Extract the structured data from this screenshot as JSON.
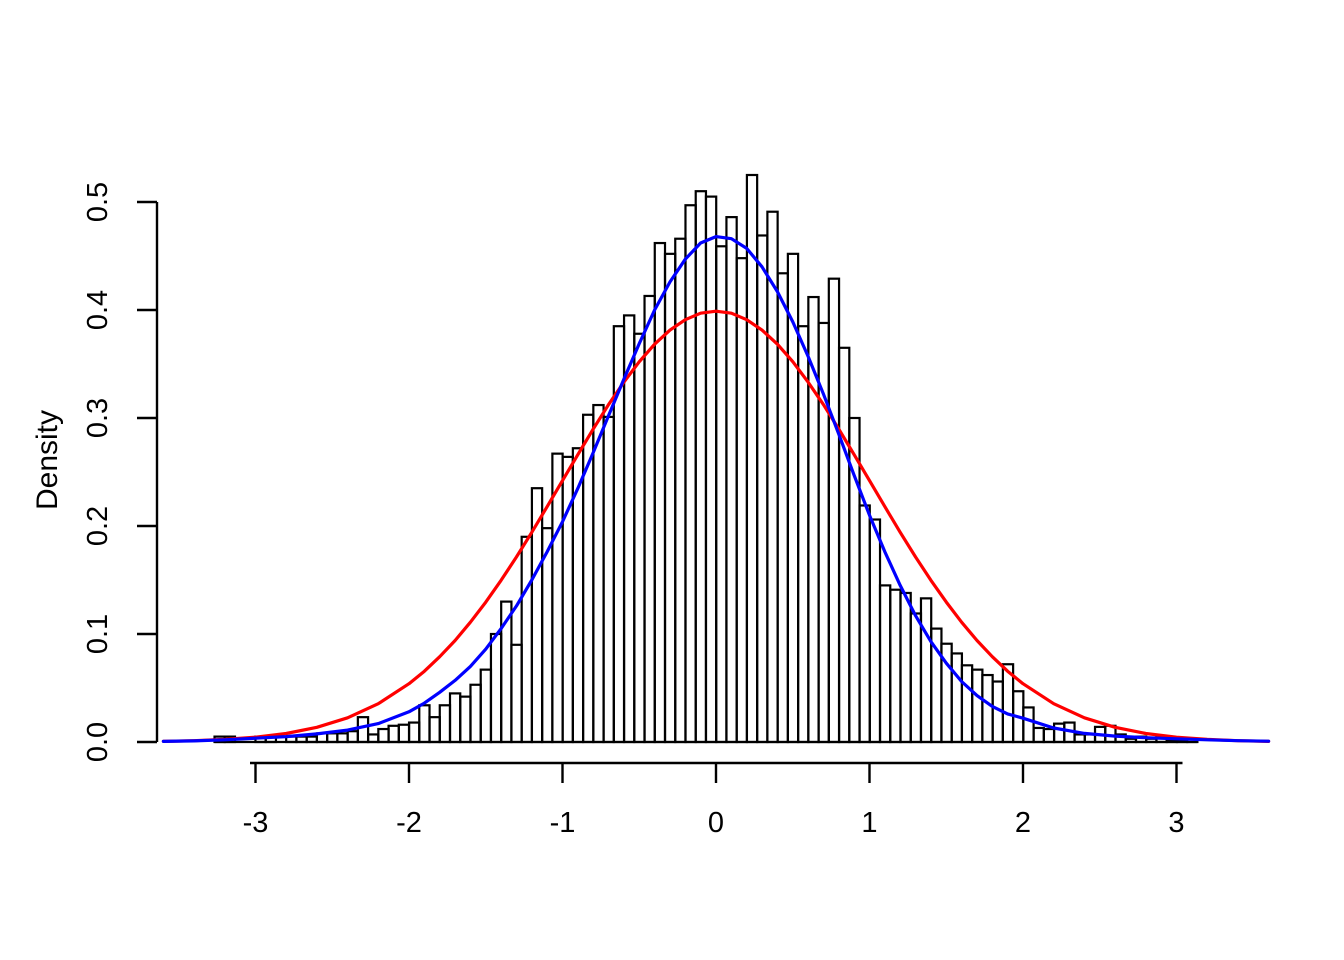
{
  "figure": {
    "background": "#FFFFFF"
  },
  "chart_data": {
    "type": "histogram",
    "title": "",
    "xlabel": "",
    "ylabel": "Density",
    "x_tick_labels": [
      "-3",
      "-2",
      "-1",
      "0",
      "1",
      "2",
      "3"
    ],
    "x_tick_values": [
      -3,
      -2,
      -1,
      0,
      1,
      2,
      3
    ],
    "y_tick_labels": [
      "0.0",
      "0.1",
      "0.2",
      "0.3",
      "0.4",
      "0.5"
    ],
    "y_tick_values": [
      0,
      0.1,
      0.2,
      0.3,
      0.4,
      0.5
    ],
    "xlim": [
      -3.65,
      3.72
    ],
    "ylim": [
      0,
      0.525
    ],
    "grid": "off",
    "legend": "none",
    "histogram": {
      "name": "sample-histogram",
      "bar_fill": "none",
      "bar_stroke": "#000000",
      "bin_start": -3.267,
      "bin_width": 0.0667,
      "densities": [
        0.005,
        0.005,
        0,
        0,
        0.005,
        0.005,
        0,
        0.005,
        0.005,
        0.005,
        0.008,
        0.008,
        0.008,
        0.01,
        0.023,
        0.007,
        0.012,
        0.015,
        0.016,
        0.018,
        0.034,
        0.023,
        0.034,
        0.045,
        0.042,
        0.053,
        0.067,
        0.1,
        0.13,
        0.09,
        0.19,
        0.235,
        0.198,
        0.267,
        0.264,
        0.272,
        0.303,
        0.312,
        0.301,
        0.385,
        0.395,
        0.378,
        0.413,
        0.462,
        0.452,
        0.466,
        0.497,
        0.51,
        0.505,
        0.459,
        0.486,
        0.448,
        0.525,
        0.469,
        0.491,
        0.434,
        0.452,
        0.385,
        0.412,
        0.388,
        0.429,
        0.365,
        0.3,
        0.219,
        0.206,
        0.145,
        0.141,
        0.138,
        0.119,
        0.133,
        0.105,
        0.091,
        0.082,
        0.071,
        0.067,
        0.062,
        0.056,
        0.072,
        0.047,
        0.032,
        0.013,
        0.012,
        0.017,
        0.018,
        0.007,
        0.007,
        0.014,
        0.015,
        0.007,
        0.003,
        0.005,
        0.003,
        0.005,
        0.002,
        0.002,
        0.003
      ]
    },
    "curves": [
      {
        "name": "theoretical-normal-density",
        "color": "#FF0000",
        "line_width": 3.2,
        "points": [
          [
            -3.6,
            0.0006
          ],
          [
            -3.4,
            0.0012
          ],
          [
            -3.2,
            0.0024
          ],
          [
            -3.0,
            0.0044
          ],
          [
            -2.8,
            0.0079
          ],
          [
            -2.6,
            0.0136
          ],
          [
            -2.4,
            0.0224
          ],
          [
            -2.2,
            0.0355
          ],
          [
            -2.0,
            0.054
          ],
          [
            -1.9,
            0.0656
          ],
          [
            -1.8,
            0.079
          ],
          [
            -1.7,
            0.094
          ],
          [
            -1.6,
            0.1109
          ],
          [
            -1.5,
            0.1295
          ],
          [
            -1.4,
            0.1497
          ],
          [
            -1.3,
            0.1714
          ],
          [
            -1.2,
            0.1942
          ],
          [
            -1.1,
            0.2179
          ],
          [
            -1.0,
            0.242
          ],
          [
            -0.9,
            0.2661
          ],
          [
            -0.8,
            0.2897
          ],
          [
            -0.7,
            0.3123
          ],
          [
            -0.6,
            0.3332
          ],
          [
            -0.5,
            0.3521
          ],
          [
            -0.4,
            0.3683
          ],
          [
            -0.3,
            0.3814
          ],
          [
            -0.2,
            0.391
          ],
          [
            -0.1,
            0.397
          ],
          [
            0,
            0.3989
          ],
          [
            0.1,
            0.397
          ],
          [
            0.2,
            0.391
          ],
          [
            0.3,
            0.3814
          ],
          [
            0.4,
            0.3683
          ],
          [
            0.5,
            0.3521
          ],
          [
            0.6,
            0.3332
          ],
          [
            0.7,
            0.3123
          ],
          [
            0.8,
            0.2897
          ],
          [
            0.9,
            0.2661
          ],
          [
            1.0,
            0.242
          ],
          [
            1.1,
            0.2179
          ],
          [
            1.2,
            0.1942
          ],
          [
            1.3,
            0.1714
          ],
          [
            1.4,
            0.1497
          ],
          [
            1.5,
            0.1295
          ],
          [
            1.6,
            0.1109
          ],
          [
            1.7,
            0.094
          ],
          [
            1.8,
            0.079
          ],
          [
            1.9,
            0.0656
          ],
          [
            2.0,
            0.054
          ],
          [
            2.2,
            0.0355
          ],
          [
            2.4,
            0.0224
          ],
          [
            2.6,
            0.0136
          ],
          [
            2.8,
            0.0079
          ],
          [
            3.0,
            0.0044
          ],
          [
            3.2,
            0.0024
          ],
          [
            3.4,
            0.0012
          ],
          [
            3.6,
            0.0006
          ]
        ]
      },
      {
        "name": "kernel-density-estimate",
        "color": "#0000FF",
        "line_width": 3.2,
        "points": [
          [
            -3.6,
            0.0006
          ],
          [
            -3.4,
            0.001
          ],
          [
            -3.2,
            0.002
          ],
          [
            -3.0,
            0.0035
          ],
          [
            -2.8,
            0.005
          ],
          [
            -2.6,
            0.0075
          ],
          [
            -2.4,
            0.011
          ],
          [
            -2.2,
            0.017
          ],
          [
            -2.0,
            0.028
          ],
          [
            -1.9,
            0.036
          ],
          [
            -1.8,
            0.046
          ],
          [
            -1.7,
            0.057
          ],
          [
            -1.6,
            0.07
          ],
          [
            -1.5,
            0.086
          ],
          [
            -1.4,
            0.105
          ],
          [
            -1.3,
            0.126
          ],
          [
            -1.2,
            0.15
          ],
          [
            -1.1,
            0.176
          ],
          [
            -1.0,
            0.204
          ],
          [
            -0.9,
            0.235
          ],
          [
            -0.8,
            0.268
          ],
          [
            -0.7,
            0.302
          ],
          [
            -0.6,
            0.336
          ],
          [
            -0.5,
            0.369
          ],
          [
            -0.4,
            0.4
          ],
          [
            -0.3,
            0.426
          ],
          [
            -0.2,
            0.447
          ],
          [
            -0.1,
            0.462
          ],
          [
            0,
            0.468
          ],
          [
            0.1,
            0.466
          ],
          [
            0.2,
            0.457
          ],
          [
            0.3,
            0.44
          ],
          [
            0.4,
            0.417
          ],
          [
            0.5,
            0.389
          ],
          [
            0.6,
            0.357
          ],
          [
            0.7,
            0.322
          ],
          [
            0.8,
            0.285
          ],
          [
            0.9,
            0.247
          ],
          [
            1.0,
            0.21
          ],
          [
            1.1,
            0.176
          ],
          [
            1.2,
            0.145
          ],
          [
            1.3,
            0.117
          ],
          [
            1.4,
            0.093
          ],
          [
            1.5,
            0.073
          ],
          [
            1.6,
            0.056
          ],
          [
            1.7,
            0.043
          ],
          [
            1.8,
            0.033
          ],
          [
            1.9,
            0.026
          ],
          [
            2.0,
            0.022
          ],
          [
            2.2,
            0.013
          ],
          [
            2.4,
            0.008
          ],
          [
            2.6,
            0.0055
          ],
          [
            2.8,
            0.004
          ],
          [
            3.0,
            0.003
          ],
          [
            3.2,
            0.002
          ],
          [
            3.4,
            0.0012
          ],
          [
            3.6,
            0.0007
          ]
        ]
      }
    ]
  }
}
